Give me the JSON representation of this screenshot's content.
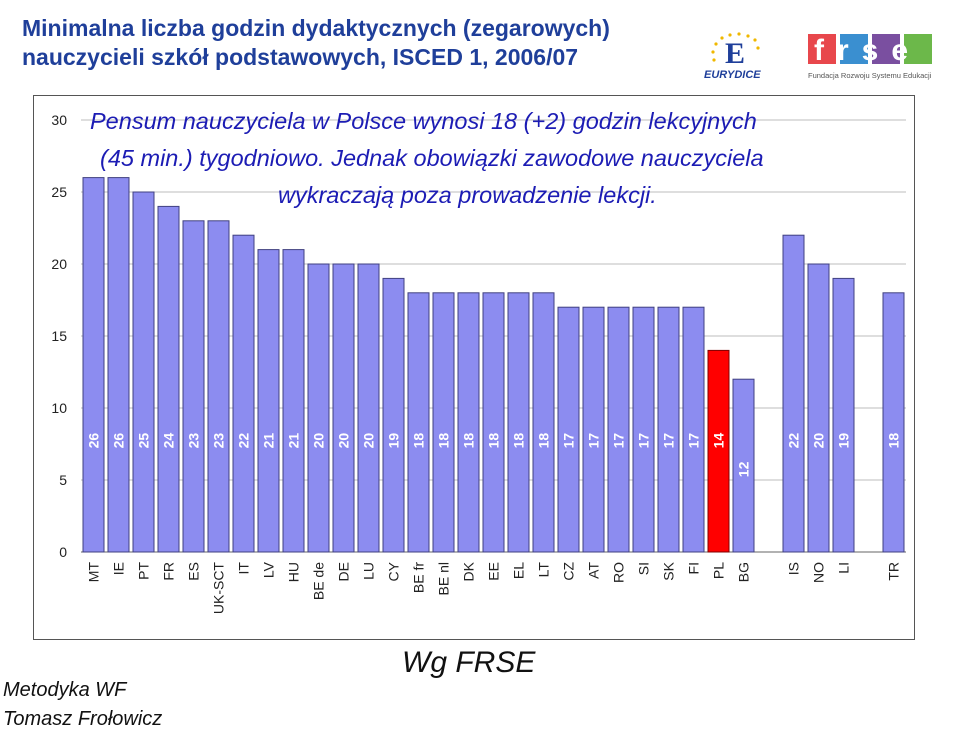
{
  "header": {
    "title_line1": "Minimalna liczba godzin dydaktycznych (zegarowych)",
    "title_line2": "nauczycieli szkół podstawowych, ISCED 1, 2006/07",
    "eurydice_label": "EURYDICE",
    "eurydice_letter": "E",
    "frse_label": "frse",
    "frse_caption": "Fundacja Rozwoju Systemu Edukacji"
  },
  "headline": {
    "line1": "Pensum nauczyciela w Polsce wynosi 18 (+2) godzin lekcyjnych",
    "line2": "(45 min.) tygodniowo. Jednak obowiązki zawodowe nauczyciela",
    "line3": "wykraczają poza prowadzenie lekcji."
  },
  "footer": {
    "center": "Wg FRSE",
    "left_line1": "Metodyka WF",
    "left_line2": "Tomasz Frołowicz"
  },
  "colors": {
    "title": "#1f3f9a",
    "headline": "#1c1cb4",
    "bar": "#8c8cf0",
    "bar_highlight": "#ff0000",
    "bar_stroke": "#404080"
  },
  "chart_data": {
    "type": "bar",
    "title": "Minimalna liczba godzin dydaktycznych (zegarowych) nauczycieli szkół podstawowych, ISCED 1, 2006/07",
    "categories": [
      "MT",
      "IE",
      "PT",
      "FR",
      "ES",
      "UK-SCT",
      "IT",
      "LV",
      "HU",
      "BE de",
      "DE",
      "LU",
      "CY",
      "BE fr",
      "BE nl",
      "DK",
      "EE",
      "EL",
      "LT",
      "CZ",
      "AT",
      "RO",
      "SI",
      "SK",
      "FI",
      "PL",
      "BG",
      "",
      "IS",
      "NO",
      "LI",
      "",
      "TR"
    ],
    "values": [
      26,
      26,
      25,
      24,
      23,
      23,
      22,
      21,
      21,
      20,
      20,
      20,
      19,
      18,
      18,
      18,
      18,
      18,
      18,
      17,
      17,
      17,
      17,
      17,
      17,
      14,
      12,
      null,
      22,
      20,
      19,
      null,
      18
    ],
    "highlight": "PL",
    "ylim": [
      0,
      30
    ],
    "yticks": [
      0,
      5,
      10,
      15,
      20,
      25,
      30
    ],
    "grid": true,
    "xlabel": "",
    "ylabel": ""
  }
}
